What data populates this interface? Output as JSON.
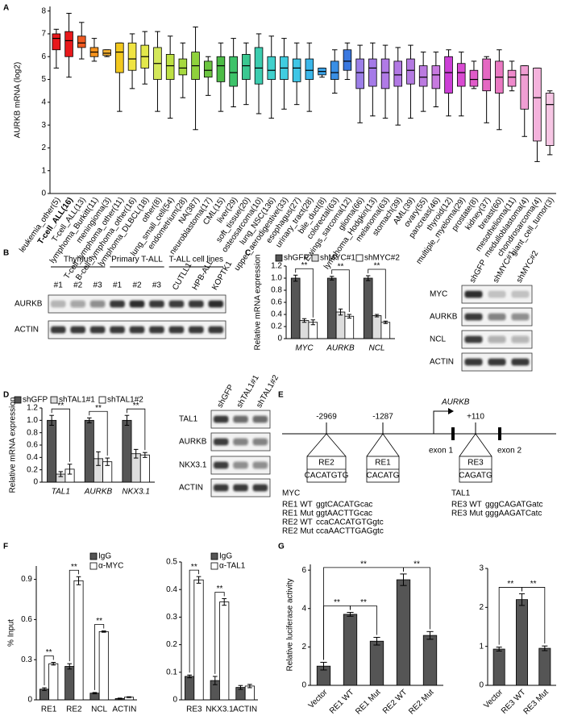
{
  "panel_labels": [
    "A",
    "B",
    "C",
    "D",
    "E",
    "F",
    "G"
  ],
  "chart_data": [
    {
      "type": "box",
      "ylabel": "AURKB mRNA (log2)",
      "categories": [
        "leukemia_other(5)",
        "T-cell_ALL(16)",
        "T-cell_ALL(13)",
        "lymphoma_Burkitt(11)",
        "meningioma(3)",
        "T-cell_lymphoma_other(11)",
        "B-cell_lymphoma_other(16)",
        "lymphoma_DLBCL(18)",
        "other(8)",
        "lung_small_cell(54)",
        "endometrium(28)",
        "NA(387)",
        "neuroblastoma(17)",
        "CML(15)",
        "liver(29)",
        "soft_tissue(20)",
        "osteosarcoma(10)",
        "lung_NSC(136)",
        "upper_aerodigestive(33)",
        "esophagus(27)",
        "urinary_tract(28)",
        "bile_duct(8)",
        "colorectal(63)",
        "Ewings_sarcoma(12)",
        "glioma(66)",
        "lymphoma_Hodgkin(13)",
        "melanoma(63)",
        "stomach(39)",
        "AML(39)",
        "ovary(55)",
        "pancreas(46)",
        "thyroid(12)",
        "multiple_myeloma(29)",
        "prostate(8)",
        "kidney(37)",
        "breast(60)",
        "mesothelioma(11)",
        "medulloblastoma(4)",
        "chondrosarcoma(4)",
        "giant_cell_tumor(3)"
      ],
      "whisker_low": [
        5.5,
        5.1,
        5.9,
        5.8,
        6.0,
        3.6,
        4.6,
        4.8,
        3.6,
        3.3,
        4.2,
        2.8,
        4.3,
        3.6,
        3.8,
        3.9,
        3.5,
        3.3,
        3.7,
        3.9,
        3.6,
        5.1,
        4.4,
        5.0,
        3.1,
        3.4,
        3.3,
        3.0,
        3.3,
        3.6,
        3.8,
        3.4,
        3.4,
        4.6,
        3.1,
        2.8,
        4.5,
        2.5,
        1.4,
        1.7
      ],
      "q1": [
        6.3,
        6.0,
        6.4,
        6.0,
        6.05,
        5.3,
        5.4,
        5.5,
        5.0,
        5.0,
        5.2,
        5.0,
        5.1,
        4.9,
        4.7,
        5.0,
        4.8,
        5.0,
        5.0,
        4.9,
        5.0,
        5.2,
        5.0,
        5.4,
        4.6,
        4.7,
        4.6,
        4.7,
        4.8,
        4.7,
        4.6,
        4.4,
        4.7,
        4.7,
        4.5,
        4.4,
        4.7,
        3.7,
        2.3,
        2.1
      ],
      "median": [
        6.8,
        6.7,
        6.6,
        6.2,
        6.15,
        6.2,
        5.9,
        6.0,
        5.7,
        5.6,
        5.5,
        5.6,
        5.4,
        5.6,
        5.3,
        5.6,
        5.5,
        5.4,
        5.5,
        5.5,
        5.4,
        5.35,
        5.3,
        5.8,
        5.3,
        5.5,
        5.3,
        5.2,
        5.4,
        5.1,
        5.2,
        5.3,
        5.3,
        5.0,
        5.0,
        5.1,
        5.1,
        5.2,
        4.2,
        3.9
      ],
      "q3": [
        7.0,
        7.1,
        6.9,
        6.4,
        6.3,
        6.6,
        6.6,
        6.5,
        6.4,
        6.1,
        5.9,
        6.2,
        5.8,
        6.0,
        6.0,
        6.1,
        6.4,
        6.0,
        6.0,
        5.9,
        5.9,
        5.5,
        5.8,
        6.3,
        5.9,
        5.9,
        5.9,
        5.8,
        5.9,
        5.6,
        5.6,
        6.0,
        5.7,
        5.4,
        5.9,
        5.8,
        5.4,
        5.6,
        5.5,
        4.4
      ],
      "whisker_high": [
        7.2,
        7.9,
        7.5,
        6.8,
        6.3,
        6.6,
        7.0,
        7.1,
        7.1,
        6.9,
        6.6,
        7.3,
        6.0,
        6.6,
        6.8,
        6.6,
        7.0,
        6.9,
        6.8,
        6.6,
        6.6,
        5.5,
        6.3,
        6.6,
        6.5,
        6.6,
        6.5,
        6.4,
        6.5,
        6.2,
        6.2,
        6.3,
        6.2,
        5.8,
        6.0,
        6.3,
        5.8,
        5.6,
        5.5,
        4.5
      ],
      "colors": [
        "#e8191c",
        "#e8191c",
        "#f05a22",
        "#f7931e",
        "#f9b233",
        "#f2c81e",
        "#f0e442",
        "#e3e84b",
        "#d4e85a",
        "#bde043",
        "#a6d93f",
        "#8fd13c",
        "#6cc641",
        "#4cbc46",
        "#3ec36a",
        "#3ac891",
        "#3ccdb0",
        "#41d0cc",
        "#40cde0",
        "#3ec6e6",
        "#3bb7ea",
        "#3ba3e8",
        "#3a8fe5",
        "#3a78e0",
        "#9c7fe8",
        "#a57ae8",
        "#b07ae6",
        "#b279e4",
        "#b47ae2",
        "#bb7ae0",
        "#c77adf",
        "#cc3fd6",
        "#d94bd2",
        "#e05bc9",
        "#e568c2",
        "#ea78c2",
        "#ee8acb",
        "#f09ed3",
        "#f4b2dc",
        "#f6c6e4"
      ],
      "ylim": [
        0,
        8.2
      ],
      "yticks": [
        0,
        1,
        2,
        3,
        4,
        5,
        6,
        7,
        8
      ],
      "highlight_index": 1,
      "highlight_color": "#e8191c"
    },
    {
      "type": "bar",
      "ylabel": "Relative mRNA expression",
      "categories": [
        "MYC",
        "AURKB",
        "NCL"
      ],
      "italic_categories": true,
      "series": [
        {
          "name": "shGFP",
          "color": "#555555",
          "values": [
            1,
            1,
            1
          ],
          "errors": [
            0.05,
            0.03,
            0.04
          ]
        },
        {
          "name": "shMYC#1",
          "color": "#dddddd",
          "values": [
            0.3,
            0.44,
            0.38
          ],
          "errors": [
            0.03,
            0.05,
            0.02
          ]
        },
        {
          "name": "shMYC#2",
          "color": "#ffffff",
          "values": [
            0.27,
            0.37,
            0.27
          ],
          "errors": [
            0.04,
            0.03,
            0.02
          ]
        }
      ],
      "ylim": [
        0,
        1.2
      ],
      "yticks": [
        0,
        0.2,
        0.4,
        0.6,
        0.8,
        {
          "value": 1,
          "label": "1.0"
        },
        1.2
      ],
      "annotations": [
        "**",
        "**",
        "**"
      ]
    },
    {
      "type": "bar",
      "ylabel": "Relative mRNA expression",
      "categories": [
        "TAL1",
        "AURKB",
        "NKX3.1"
      ],
      "italic_categories": true,
      "series": [
        {
          "name": "shGFP",
          "color": "#555555",
          "values": [
            1,
            1,
            1
          ],
          "errors": [
            0.08,
            0.04,
            0.08
          ]
        },
        {
          "name": "shTAL1#1",
          "color": "#dddddd",
          "values": [
            0.13,
            0.38,
            0.46
          ],
          "errors": [
            0.04,
            0.11,
            0.07
          ]
        },
        {
          "name": "shTAL1#2",
          "color": "#ffffff",
          "values": [
            0.21,
            0.33,
            0.44
          ],
          "errors": [
            0.08,
            0.06,
            0.04
          ]
        }
      ],
      "ylim": [
        0,
        1.2
      ],
      "yticks": [
        0,
        0.2,
        0.4,
        0.6,
        0.8,
        {
          "value": 1,
          "label": "1.0"
        },
        1.2
      ],
      "annotations": [
        "**",
        "**",
        "**"
      ]
    },
    {
      "type": "bar",
      "ylabel": "% Input",
      "categories": [
        "RE1",
        "RE2",
        "NCL",
        "ACTIN"
      ],
      "series": [
        {
          "name": "IgG",
          "color": "#555555",
          "values": [
            0.08,
            0.25,
            0.05,
            0.01
          ],
          "errors": [
            0.01,
            0.02,
            0.005,
            0.003
          ]
        },
        {
          "name": "α-MYC",
          "color": "#ffffff",
          "values": [
            0.27,
            0.89,
            0.51,
            0.02
          ],
          "errors": [
            0.01,
            0.03,
            0.005,
            0.003
          ]
        }
      ],
      "ylim": [
        0,
        1
      ],
      "yticks": [
        0,
        0.3,
        0.6,
        0.9
      ],
      "annotations": [
        "**",
        "**",
        "**"
      ]
    },
    {
      "type": "bar",
      "categories": [
        "RE3",
        "NKX3.1",
        "ACTIN"
      ],
      "series": [
        {
          "name": "IgG",
          "color": "#555555",
          "values": [
            0.085,
            0.07,
            0.045
          ],
          "errors": [
            0.005,
            0.015,
            0.007
          ]
        },
        {
          "name": "α-TAL1",
          "color": "#ffffff",
          "values": [
            0.435,
            0.355,
            0.05
          ],
          "errors": [
            0.012,
            0.012,
            0.006
          ]
        }
      ],
      "ylim": [
        0,
        0.5
      ],
      "yticks": [
        0,
        0.1,
        0.2,
        0.3,
        0.4,
        0.5
      ],
      "annotations": [
        "**",
        "**"
      ]
    },
    {
      "type": "bar",
      "ylabel": "Relative luciferase activity",
      "categories": [
        "Vector",
        "RE1 WT",
        "RE1 Mut",
        "RE2 WT",
        "RE2 Mut"
      ],
      "color": "#555555",
      "values": [
        1,
        3.7,
        2.3,
        5.5,
        2.6
      ],
      "errors": [
        0.2,
        0.1,
        0.2,
        0.3,
        0.2
      ],
      "ylim": [
        0,
        6.3
      ],
      "yticks": [
        0,
        2,
        4,
        6
      ],
      "annotations": [
        "**",
        "**",
        "**",
        "**"
      ]
    },
    {
      "type": "bar",
      "categories": [
        "Vector",
        "RE3 WT",
        "RE3 Mut"
      ],
      "color": "#555555",
      "values": [
        0.93,
        2.2,
        0.95
      ],
      "errors": [
        0.05,
        0.15,
        0.06
      ],
      "ylim": [
        0,
        3
      ],
      "yticks": [
        0,
        1,
        2,
        3
      ],
      "annotations": [
        "**",
        "**"
      ]
    }
  ],
  "blots": [
    {
      "groups": [
        "Thymus",
        "Primary T-ALL",
        "T-ALL cell lines"
      ],
      "lanes": [
        "#1",
        "#2",
        "#3",
        "#1",
        "#2",
        "#3",
        "CUTLL1",
        "HPB-ALL",
        "KOPTK1"
      ],
      "rows": [
        "AURKB",
        "ACTIN"
      ]
    },
    {
      "lanes": [
        "shGFP",
        "shMYC#1",
        "shMYC#2"
      ],
      "rows": [
        "MYC",
        "AURKB",
        "NCL",
        "ACTIN"
      ]
    },
    {
      "lanes": [
        "shGFP",
        "shTAL1#1",
        "shTAL1#2"
      ],
      "rows": [
        "TAL1",
        "AURKB",
        "NKX3.1",
        "ACTIN"
      ]
    }
  ],
  "diagram": {
    "gene": "AURKB",
    "sites": [
      {
        "position": "-2969",
        "name": "RE2",
        "motif": "CACATGTG"
      },
      {
        "position": "-1287",
        "name": "RE1",
        "motif": "CACATG"
      },
      {
        "position": "+110",
        "name": "RE3",
        "motif": "CAGATG"
      }
    ],
    "exons": [
      "exon 1",
      "exon 2"
    ],
    "groups": [
      {
        "factor": "MYC",
        "rows": [
          {
            "name": "RE1 WT",
            "sequence": "ggtCACATGcac"
          },
          {
            "name": "RE1 Mut",
            "sequence": "ggtAACTTGcac"
          },
          {
            "name": "RE2 WT",
            "sequence": "ccaCACATGTGgtc"
          },
          {
            "name": "RE2 Mut",
            "sequence": "ccaAACTTGAGgtc"
          }
        ]
      },
      {
        "factor": "TAL1",
        "rows": [
          {
            "name": "RE3 WT",
            "sequence": "gggCAGATGatc"
          },
          {
            "name": "RE3 Mut",
            "sequence": "gggAAGATCatc"
          }
        ]
      }
    ]
  }
}
